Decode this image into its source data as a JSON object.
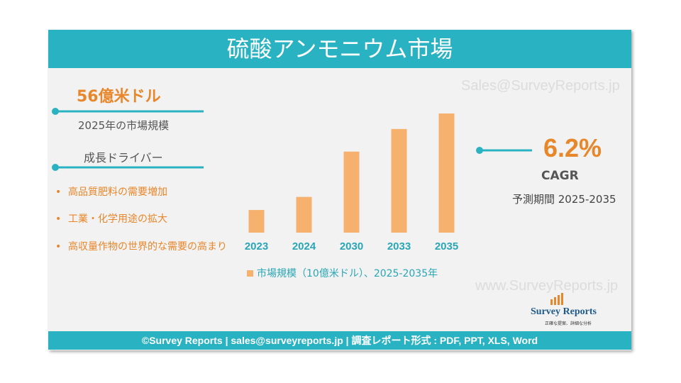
{
  "header": {
    "title": "硫酸アンモニウム市場"
  },
  "left": {
    "market_size": "56億米ドル",
    "market_size_label": "2025年の市場規模",
    "drivers_title": "成長ドライバー",
    "drivers": [
      "高品質肥料の需要増加",
      "工業・化学用途の拡大",
      "高収量作物の世界的な需要の高まり"
    ]
  },
  "right": {
    "cagr_value": "6.2%",
    "cagr_label": "CAGR",
    "period": "予測期間 2025-2035"
  },
  "watermarks": {
    "email": "Sales@SurveyReports.jp",
    "site": "www.SurveyReports.jp"
  },
  "logo": {
    "name": "Survey Reports",
    "tagline": "正確な提案、詳細な分析"
  },
  "footer": {
    "text": "©Survey Reports | sales@surveyreports.jp |  調査レポート形式 : PDF, PPT, XLS, Word"
  },
  "chart_data": {
    "type": "bar",
    "categories": [
      "2023",
      "2024",
      "2030",
      "2033",
      "2035"
    ],
    "series": [
      {
        "name": "市場規模（10億米ドル）、2025-2035年",
        "color": "#f5b16d",
        "values": [
          1.9,
          3.0,
          6.8,
          8.7,
          10.0
        ]
      }
    ]
  }
}
